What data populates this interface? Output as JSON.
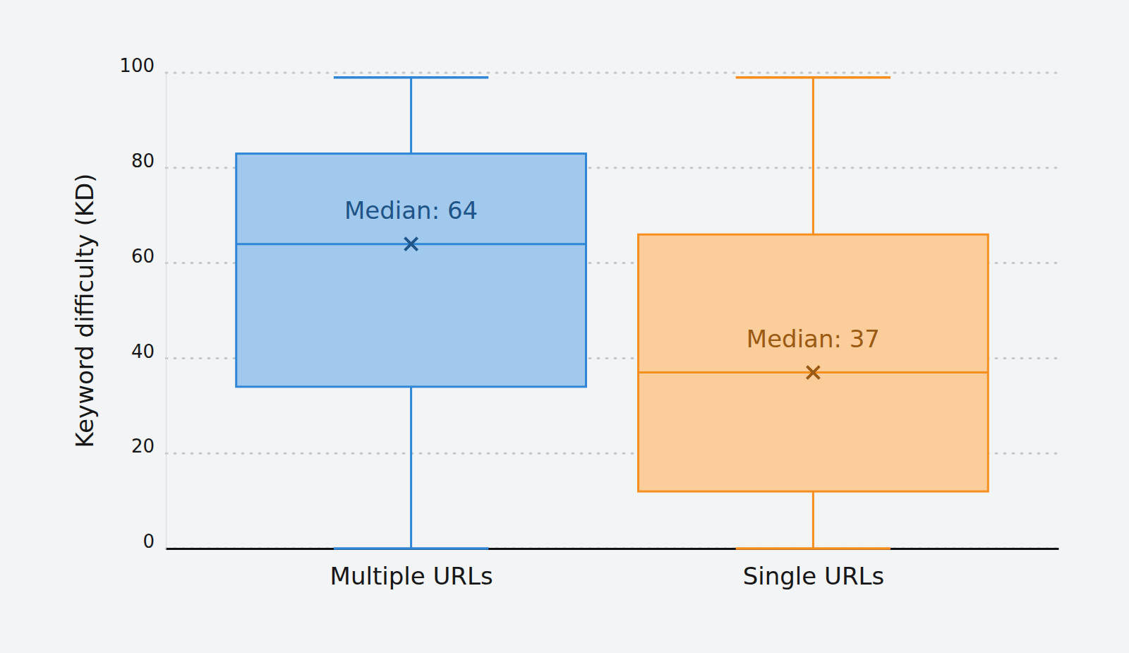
{
  "chart_data": {
    "type": "box",
    "y_label": "Keyword difficulty (KD)",
    "categories": [
      "Multiple URLs",
      "Single URLs"
    ],
    "min": [
      0,
      0
    ],
    "q1": [
      34,
      12
    ],
    "median": [
      64,
      37
    ],
    "q3": [
      83,
      66
    ],
    "max": [
      99,
      99
    ],
    "median_labels": [
      "Median: 64",
      "Median: 37"
    ],
    "data_labels": true,
    "colors": [
      "#2f86d6",
      "#f78f1e"
    ],
    "ylim": [
      0,
      100
    ],
    "yticks": [
      0,
      20,
      40,
      60,
      80,
      100
    ],
    "grid": true
  }
}
